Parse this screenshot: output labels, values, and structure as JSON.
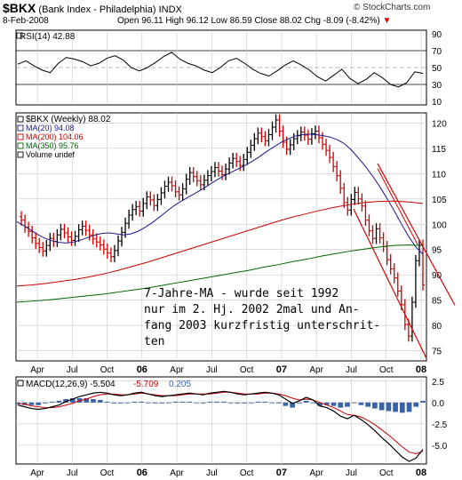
{
  "header": {
    "symbol": "$BKX",
    "name": "(Bank Index - Philadelphia)",
    "exchange": "INDX",
    "copyright": "© StockCharts.com",
    "date": "8-Feb-2008",
    "open_label": "Open",
    "open": "96.11",
    "high_label": "High",
    "high": "96.12",
    "low_label": "Low",
    "low": "86.59",
    "close_label": "Close",
    "close": "88.02",
    "chg_label": "Chg",
    "chg": "-8.09 (-8.42%)"
  },
  "colors": {
    "price": "#000000",
    "down": "#cc0000",
    "ma20": "#1a1a8c",
    "ma200": "#cc0000",
    "ma350": "#006600",
    "trend": "#dd0000",
    "grid": "#c8c8c8",
    "macd_hist": "#3a63a8"
  },
  "chart_data": [
    {
      "type": "line",
      "panel": "RSI",
      "series": [
        {
          "name": "RSI(14) 42.88",
          "values": [
            54,
            58,
            52,
            47,
            44,
            55,
            62,
            60,
            57,
            52,
            55,
            61,
            64,
            59,
            50,
            46,
            50,
            56,
            63,
            68,
            60,
            55,
            52,
            47,
            44,
            50,
            58,
            61,
            55,
            48,
            43,
            40,
            46,
            53,
            58,
            53,
            47,
            39,
            34,
            41,
            48,
            37,
            31,
            36,
            44,
            38,
            30,
            27,
            32,
            45,
            43
          ]
        }
      ],
      "yticks": [
        10,
        30,
        50,
        70,
        90
      ],
      "ylim": [
        10,
        90
      ]
    },
    {
      "type": "ohlc",
      "panel": "price",
      "title": "$BKX (Weekly) 88.02",
      "legend": [
        "MA(20) 94.08",
        "MA(200) 104.06",
        "MA(350) 95.76",
        "Volume undef"
      ],
      "x_ticks": [
        "Apr",
        "Jul",
        "Oct",
        "06",
        "Apr",
        "Jul",
        "Oct",
        "07",
        "Apr",
        "Jul",
        "Oct",
        "08"
      ],
      "yticks": [
        75,
        80,
        85,
        90,
        95,
        100,
        105,
        110,
        115,
        120
      ],
      "ylim": [
        73,
        122
      ],
      "closes": [
        101.5,
        100.8,
        99.4,
        98.6,
        97.3,
        96.2,
        95.4,
        94.7,
        95.8,
        97.2,
        96.6,
        97.9,
        99.0,
        98.3,
        97.5,
        96.8,
        97.6,
        98.9,
        99.6,
        98.8,
        97.9,
        97.1,
        96.5,
        95.9,
        95.1,
        94.3,
        93.6,
        94.8,
        96.7,
        98.4,
        100.2,
        101.8,
        102.9,
        103.5,
        102.6,
        104.1,
        105.4,
        104.8,
        103.7,
        104.9,
        106.2,
        107.5,
        108.3,
        107.6,
        106.4,
        105.8,
        107.0,
        108.9,
        110.2,
        109.4,
        108.6,
        107.8,
        108.7,
        109.6,
        110.4,
        111.2,
        110.5,
        109.8,
        110.9,
        112.1,
        113.0,
        112.4,
        111.6,
        112.8,
        114.2,
        115.6,
        116.9,
        118.0,
        117.3,
        116.5,
        117.7,
        119.2,
        120.6,
        118.4,
        116.2,
        114.8,
        115.7,
        116.9,
        117.5,
        118.2,
        117.6,
        116.8,
        117.9,
        118.4,
        117.1,
        115.8,
        114.6,
        113.2,
        111.4,
        109.6,
        107.1,
        104.3,
        102.8,
        104.9,
        106.3,
        105.0,
        103.6,
        100.8,
        98.7,
        97.2,
        99.1,
        97.3,
        95.6,
        93.0,
        91.2,
        89.4,
        86.8,
        84.1,
        80.2,
        77.9,
        84.6,
        92.8,
        95.9,
        88.0
      ],
      "lines": [
        {
          "name": "MA(20)",
          "values": [
            98.6,
            98.1,
            97.7,
            97.4,
            97.3,
            97.3,
            97.5,
            97.9,
            98.6,
            99.5,
            100.6,
            101.8,
            103.0,
            104.1,
            105.1,
            106.0,
            106.9,
            107.7,
            108.5,
            109.3,
            110.1,
            110.9,
            111.8,
            112.8,
            113.9,
            114.9,
            115.8,
            116.5,
            117.0,
            117.2,
            117.0,
            116.4,
            115.4,
            113.9,
            112.1,
            110.1,
            107.8,
            105.2,
            102.4,
            99.3,
            96.3,
            94.1
          ]
        },
        {
          "name": "MA(200)",
          "values": [
            87.8,
            88.0,
            88.3,
            88.7,
            89.1,
            89.6,
            90.2,
            90.9,
            91.7,
            92.5,
            93.4,
            94.3,
            95.2,
            96.1,
            97.0,
            97.9,
            98.8,
            99.7,
            100.6,
            101.4,
            102.1,
            102.8,
            103.4,
            103.9,
            104.3,
            104.5,
            104.6,
            104.4,
            104.1
          ]
        },
        {
          "name": "MA(350)",
          "values": [
            84.6,
            84.8,
            85.0,
            85.3,
            85.6,
            85.9,
            86.2,
            86.6,
            87.0,
            87.4,
            87.9,
            88.4,
            88.9,
            89.4,
            89.9,
            90.4,
            90.9,
            91.5,
            92.0,
            92.6,
            93.1,
            93.7,
            94.2,
            94.7,
            95.1,
            95.5,
            95.8,
            95.9,
            95.8
          ]
        }
      ],
      "trendlines": [
        {
          "from": [
            110.0,
            "07 Jul"
          ],
          "to": [
            87.5,
            "08 Mar"
          ]
        },
        {
          "from": [
            103.5,
            "07 Jul"
          ],
          "to": [
            74.0,
            "08 Feb"
          ]
        }
      ],
      "annotation": [
        "7-Jahre-MA - wurde seit 1992",
        "nur im 2. Hj. 2002 2mal und An-",
        "fang 2003 kurzfristig unterschrit-",
        "ten"
      ]
    },
    {
      "type": "line",
      "panel": "MACD",
      "title": "MACD(12,26,9)",
      "macd_value": "-5.504",
      "signal_value": "-5.709",
      "hist_value": "0.205",
      "yticks": [
        -5.0,
        -2.5,
        0.0,
        2.5
      ],
      "ylim": [
        -7.2,
        3.0
      ],
      "series": [
        {
          "name": "MACD",
          "values": [
            -0.3,
            -0.5,
            -0.7,
            -0.8,
            -0.7,
            -0.5,
            -0.3,
            0.1,
            0.4,
            0.7,
            0.9,
            1.1,
            1.2,
            1.1,
            0.9,
            0.8,
            0.9,
            1.1,
            1.2,
            1.0,
            0.8,
            0.7,
            0.8,
            0.9,
            1.0,
            1.1,
            1.0,
            0.9,
            1.1,
            1.2,
            1.3,
            1.2,
            1.0,
            0.9,
            1.0,
            1.1,
            1.2,
            1.1,
            0.9,
            0.4,
            -0.1,
            0.2,
            0.6,
            0.3,
            -0.4,
            -0.6,
            -1.0,
            -1.6,
            -1.9,
            -1.5,
            -2.0,
            -2.6,
            -3.3,
            -4.1,
            -4.8,
            -5.6,
            -6.4,
            -6.9,
            -6.5,
            -5.5
          ]
        },
        {
          "name": "Signal",
          "values": [
            -0.1,
            -0.2,
            -0.4,
            -0.5,
            -0.6,
            -0.6,
            -0.5,
            -0.3,
            -0.1,
            0.2,
            0.4,
            0.7,
            0.9,
            1.0,
            1.0,
            0.9,
            0.9,
            1.0,
            1.1,
            1.0,
            0.9,
            0.8,
            0.8,
            0.8,
            0.9,
            1.0,
            1.0,
            1.0,
            1.0,
            1.1,
            1.2,
            1.2,
            1.1,
            1.0,
            1.0,
            1.0,
            1.1,
            1.1,
            1.0,
            0.8,
            0.5,
            0.3,
            0.4,
            0.3,
            0.0,
            -0.3,
            -0.6,
            -1.0,
            -1.4,
            -1.5,
            -1.7,
            -2.1,
            -2.6,
            -3.2,
            -3.8,
            -4.5,
            -5.2,
            -5.8,
            -6.0,
            -5.7
          ]
        }
      ],
      "x_ticks": [
        "Apr",
        "Jul",
        "Oct",
        "06",
        "Apr",
        "Jul",
        "Oct",
        "07",
        "Apr",
        "Jul",
        "Oct",
        "08"
      ]
    }
  ]
}
